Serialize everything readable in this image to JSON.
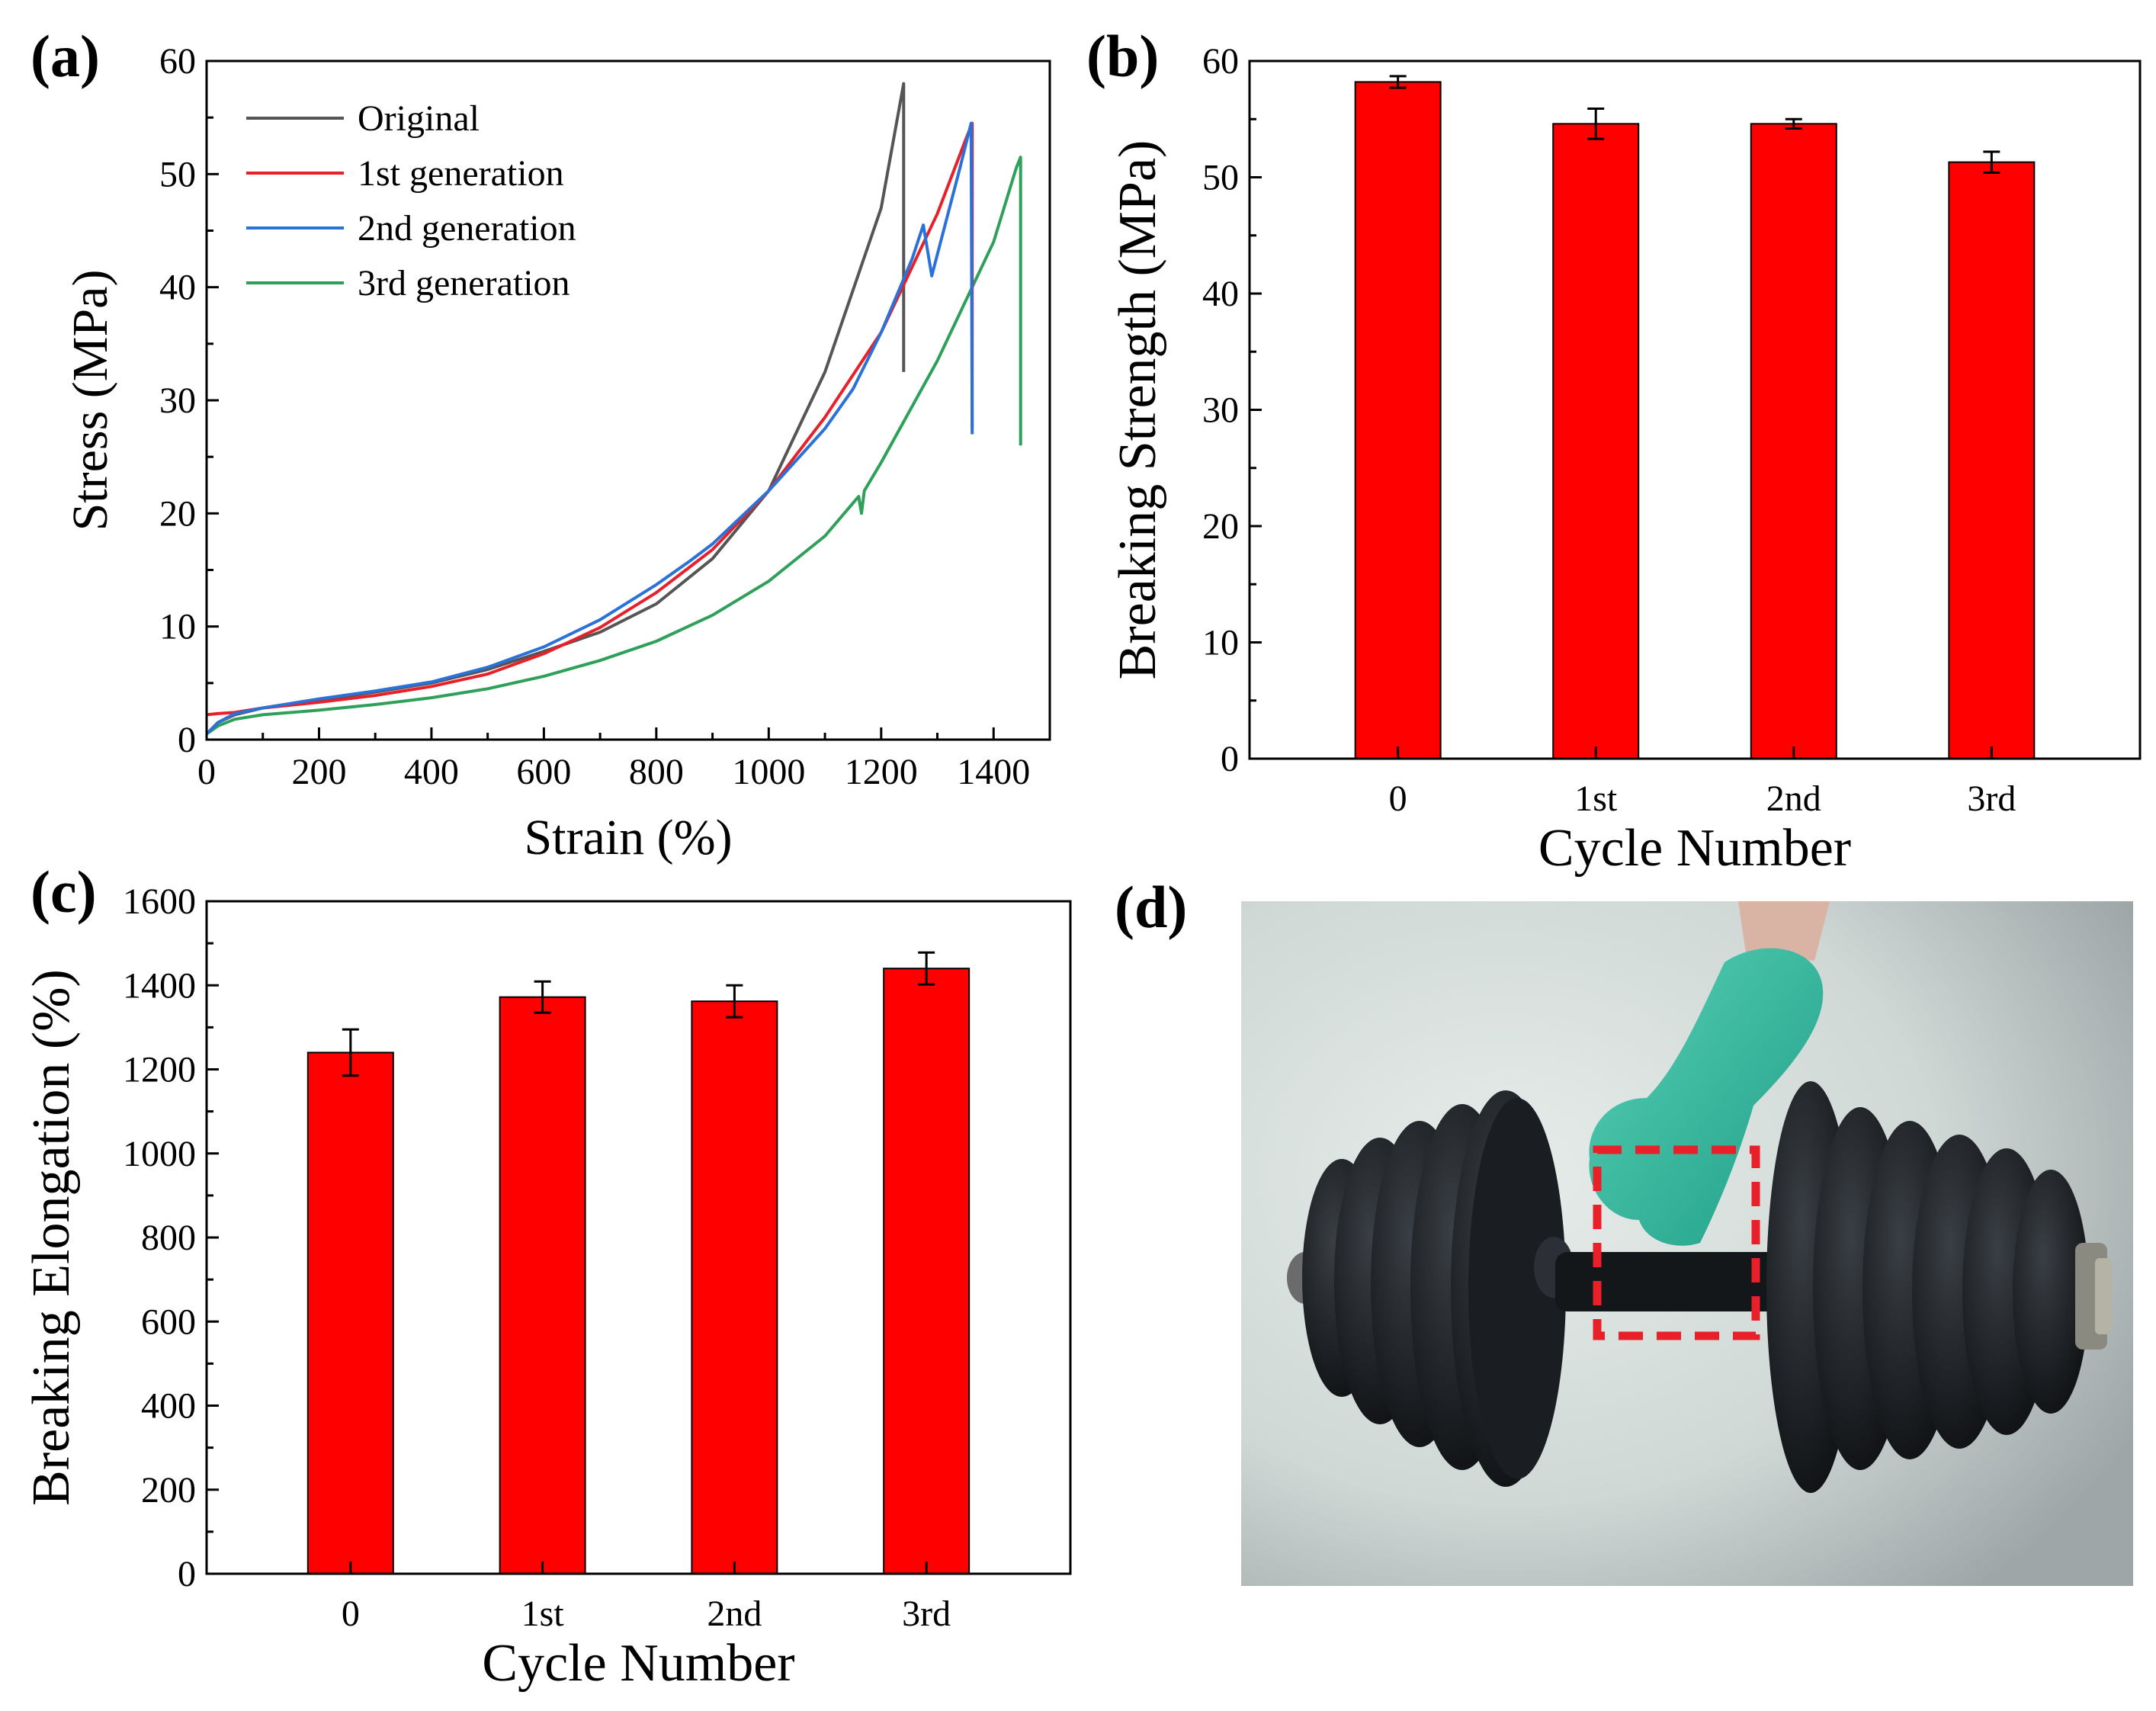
{
  "figure": {
    "colors": {
      "original": "#555555",
      "gen1": "#e8202a",
      "gen2": "#2a72d8",
      "gen3": "#2ea05a",
      "bar": "#ff0000",
      "box": "#e8202a"
    }
  },
  "panel_a": {
    "label": "(a)"
  },
  "panel_b": {
    "label": "(b)"
  },
  "panel_c": {
    "label": "(c)"
  },
  "panel_d": {
    "label": "(d)",
    "photo_description_icon": "dumbbell-photo"
  },
  "chart_data": [
    {
      "id": "a",
      "type": "line",
      "title": "",
      "xlabel": "Strain (%)",
      "ylabel": "Stress (MPa)",
      "xlim": [
        0,
        1500
      ],
      "ylim": [
        0,
        60
      ],
      "xticks": [
        0,
        200,
        400,
        600,
        800,
        1000,
        1200,
        1400
      ],
      "yticks": [
        0,
        10,
        20,
        30,
        40,
        50,
        60
      ],
      "legend": "top-left",
      "series": [
        {
          "name": "Original",
          "color_key": "original",
          "x": [
            0,
            20,
            50,
            100,
            200,
            300,
            400,
            500,
            600,
            700,
            800,
            900,
            1000,
            1100,
            1200,
            1240,
            1240
          ],
          "y": [
            0.5,
            1.5,
            2.2,
            2.8,
            3.5,
            4.2,
            5.0,
            6.2,
            7.8,
            9.5,
            12.0,
            16.0,
            22.0,
            32.5,
            47.0,
            58.0,
            32.5
          ]
        },
        {
          "name": "1st generation",
          "color_key": "gen1",
          "x": [
            0,
            20,
            50,
            100,
            200,
            300,
            400,
            500,
            600,
            700,
            800,
            900,
            1000,
            1100,
            1200,
            1300,
            1350,
            1362,
            1362
          ],
          "y": [
            2.2,
            2.3,
            2.4,
            2.8,
            3.3,
            3.9,
            4.7,
            5.8,
            7.6,
            9.9,
            13.0,
            16.8,
            22.0,
            28.5,
            36.0,
            46.5,
            53.0,
            54.5,
            27.5
          ]
        },
        {
          "name": "2nd generation",
          "color_key": "gen2",
          "x": [
            0,
            20,
            50,
            100,
            200,
            300,
            400,
            500,
            600,
            700,
            800,
            860,
            900,
            1000,
            1100,
            1150,
            1200,
            1255,
            1275,
            1290,
            1340,
            1360,
            1362
          ],
          "y": [
            0.5,
            1.5,
            2.3,
            2.8,
            3.6,
            4.3,
            5.1,
            6.4,
            8.2,
            10.6,
            13.7,
            15.8,
            17.3,
            22.0,
            27.5,
            31.0,
            36.0,
            42.5,
            45.5,
            41.0,
            50.5,
            54.5,
            27.0
          ]
        },
        {
          "name": "3rd generation",
          "color_key": "gen3",
          "x": [
            0,
            20,
            50,
            100,
            200,
            300,
            400,
            500,
            600,
            700,
            800,
            900,
            1000,
            1100,
            1160,
            1165,
            1170,
            1200,
            1300,
            1400,
            1440,
            1448,
            1448
          ],
          "y": [
            0.5,
            1.2,
            1.8,
            2.2,
            2.6,
            3.1,
            3.7,
            4.5,
            5.6,
            7.0,
            8.7,
            11.0,
            14.0,
            18.0,
            21.5,
            20.0,
            22.0,
            24.5,
            33.5,
            44.0,
            50.5,
            51.5,
            26.0
          ]
        }
      ]
    },
    {
      "id": "b",
      "type": "bar",
      "title": "",
      "xlabel": "Cycle Number",
      "ylabel": "Breaking Strength (MPa)",
      "ylim": [
        0,
        60
      ],
      "yticks": [
        0,
        10,
        20,
        30,
        40,
        50,
        60
      ],
      "categories": [
        "0",
        "1st",
        "2nd",
        "3rd"
      ],
      "values": [
        58.2,
        54.6,
        54.6,
        51.3
      ],
      "errors": [
        0.5,
        1.3,
        0.4,
        0.9
      ]
    },
    {
      "id": "c",
      "type": "bar",
      "title": "",
      "xlabel": "Cycle Number",
      "ylabel": "Breaking Elongation (%)",
      "ylim": [
        0,
        1600
      ],
      "yticks": [
        0,
        200,
        400,
        600,
        800,
        1000,
        1200,
        1400,
        1600
      ],
      "categories": [
        "0",
        "1st",
        "2nd",
        "3rd"
      ],
      "values": [
        1240,
        1372,
        1362,
        1440
      ],
      "errors": [
        55,
        37,
        38,
        38
      ]
    }
  ]
}
